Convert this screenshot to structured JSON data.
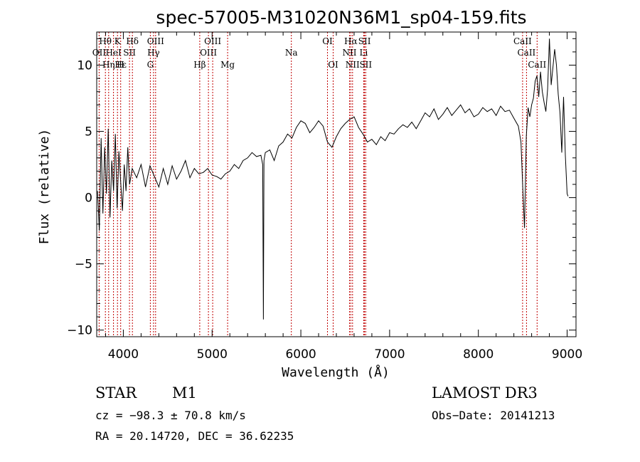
{
  "chart_data": {
    "type": "line",
    "title": "spec-57005-M31020N36M1_sp04-159.fits",
    "xlabel": "Wavelength (Å)",
    "ylabel": "Flux (relative)",
    "xlim": [
      3700,
      9100
    ],
    "ylim": [
      -10.5,
      12.5
    ],
    "xticks": [
      4000,
      5000,
      6000,
      7000,
      8000,
      9000
    ],
    "yticks": [
      -10,
      -5,
      0,
      5,
      10
    ],
    "xtick_labels": [
      "4000",
      "5000",
      "6000",
      "7000",
      "8000",
      "9000"
    ],
    "ytick_labels": [
      "−10",
      "−5",
      "0",
      "5",
      "10"
    ],
    "spectrum": {
      "name": "flux",
      "x": [
        3710,
        3730,
        3750,
        3770,
        3790,
        3810,
        3830,
        3850,
        3870,
        3890,
        3910,
        3930,
        3950,
        3970,
        3990,
        4010,
        4030,
        4050,
        4070,
        4100,
        4150,
        4200,
        4250,
        4300,
        4350,
        4400,
        4450,
        4500,
        4550,
        4600,
        4650,
        4700,
        4750,
        4800,
        4850,
        4900,
        4950,
        5000,
        5050,
        5100,
        5150,
        5200,
        5250,
        5300,
        5350,
        5400,
        5450,
        5500,
        5550,
        5570,
        5578,
        5584,
        5600,
        5650,
        5700,
        5750,
        5800,
        5850,
        5900,
        5950,
        6000,
        6050,
        6100,
        6150,
        6200,
        6250,
        6300,
        6350,
        6400,
        6450,
        6500,
        6550,
        6600,
        6650,
        6700,
        6750,
        6800,
        6850,
        6900,
        6950,
        7000,
        7050,
        7100,
        7150,
        7200,
        7250,
        7300,
        7350,
        7400,
        7450,
        7500,
        7550,
        7600,
        7650,
        7700,
        7750,
        7800,
        7850,
        7900,
        7950,
        8000,
        8050,
        8100,
        8150,
        8200,
        8250,
        8300,
        8350,
        8400,
        8450,
        8480,
        8500,
        8520,
        8540,
        8560,
        8580,
        8600,
        8620,
        8640,
        8660,
        8680,
        8700,
        8720,
        8740,
        8760,
        8780,
        8800,
        8820,
        8840,
        8860,
        8880,
        8900,
        8920,
        8940,
        8960,
        8980,
        9000,
        9010
      ],
      "y": [
        0.5,
        -2.5,
        4.5,
        -1.2,
        3.8,
        0.3,
        5.2,
        -1.5,
        2.8,
        0.5,
        4.8,
        -0.8,
        3.5,
        1.2,
        -1.0,
        2.5,
        0.5,
        3.8,
        1.0,
        2.2,
        1.5,
        2.5,
        0.8,
        2.4,
        1.6,
        0.8,
        2.2,
        1.0,
        2.4,
        1.4,
        2.0,
        2.8,
        1.5,
        2.2,
        1.8,
        1.9,
        2.2,
        1.7,
        1.6,
        1.4,
        1.8,
        2.0,
        2.5,
        2.2,
        2.8,
        3.0,
        3.4,
        3.1,
        3.2,
        2.5,
        -9.2,
        2.8,
        3.4,
        3.6,
        2.8,
        3.9,
        4.2,
        4.8,
        4.5,
        5.3,
        5.8,
        5.6,
        4.9,
        5.3,
        5.8,
        5.4,
        4.2,
        3.8,
        4.6,
        5.2,
        5.6,
        5.9,
        6.1,
        5.3,
        4.8,
        4.2,
        4.4,
        4.0,
        4.6,
        4.3,
        4.9,
        4.8,
        5.2,
        5.5,
        5.3,
        5.7,
        5.2,
        5.8,
        6.4,
        6.1,
        6.7,
        5.9,
        6.3,
        6.8,
        6.2,
        6.6,
        7.0,
        6.4,
        6.7,
        6.1,
        6.3,
        6.8,
        6.5,
        6.7,
        6.2,
        6.9,
        6.5,
        6.6,
        6.0,
        5.4,
        4.2,
        0.8,
        -2.3,
        4.6,
        6.8,
        6.1,
        7.0,
        7.5,
        8.8,
        9.2,
        7.6,
        9.5,
        8.0,
        7.2,
        6.5,
        8.2,
        12.0,
        8.5,
        9.8,
        11.2,
        10.0,
        7.8,
        6.4,
        3.4,
        7.6,
        3.2,
        0.3,
        0.1
      ]
    },
    "line_ids": [
      {
        "label": "Hθ",
        "x": 3798,
        "row": 1
      },
      {
        "label": "K",
        "x": 3934,
        "row": 1
      },
      {
        "label": "Hδ",
        "x": 4102,
        "row": 1
      },
      {
        "label": "OIII",
        "x": 4363,
        "row": 1
      },
      {
        "label": "OIII",
        "x": 5007,
        "row": 1
      },
      {
        "label": "OI",
        "x": 6300,
        "row": 1
      },
      {
        "label": "Hα",
        "x": 6563,
        "row": 1
      },
      {
        "label": "SII",
        "x": 6717,
        "row": 1
      },
      {
        "label": "CaII",
        "x": 8498,
        "row": 1
      },
      {
        "label": "OII",
        "x": 3727,
        "row": 2
      },
      {
        "label": "HeI",
        "x": 3889,
        "row": 2
      },
      {
        "label": "SII",
        "x": 4069,
        "row": 2
      },
      {
        "label": "Hγ",
        "x": 4340,
        "row": 2
      },
      {
        "label": "OIII",
        "x": 4959,
        "row": 2
      },
      {
        "label": "Na",
        "x": 5893,
        "row": 2
      },
      {
        "label": "NII",
        "x": 6548,
        "row": 2
      },
      {
        "label": "Li",
        "x": 6708,
        "row": 2
      },
      {
        "label": "CaII",
        "x": 8542,
        "row": 2
      },
      {
        "label": "Hε",
        "x": 3970,
        "row": 3
      },
      {
        "label": "Hη",
        "x": 3835,
        "row": 3
      },
      {
        "label": "H",
        "x": 3968,
        "row": 3
      },
      {
        "label": "G",
        "x": 4304,
        "row": 3
      },
      {
        "label": "Hβ",
        "x": 4861,
        "row": 3
      },
      {
        "label": "Mg",
        "x": 5175,
        "row": 3
      },
      {
        "label": "OI",
        "x": 6364,
        "row": 3
      },
      {
        "label": "NII",
        "x": 6583,
        "row": 3
      },
      {
        "label": "SII",
        "x": 6731,
        "row": 3
      },
      {
        "label": "CaII",
        "x": 8662,
        "row": 3
      }
    ],
    "marker_lines_x": [
      3727,
      3798,
      3835,
      3889,
      3934,
      3970,
      4069,
      4102,
      4304,
      4340,
      4363,
      4861,
      4959,
      5007,
      5175,
      5893,
      6300,
      6364,
      6548,
      6563,
      6583,
      6708,
      6717,
      6731,
      8498,
      8542,
      8662
    ],
    "colors": {
      "spectrum": "#000000",
      "marker": "#c00000",
      "axis": "#000000"
    }
  },
  "info": {
    "object_class": "STAR",
    "subclass": "M1",
    "survey": "LAMOST DR3",
    "cz": "cz = −98.3 ± 70.8 km/s",
    "obs_date": "Obs−Date: 20141213",
    "coords": "RA =  20.14720, DEC =  36.62235"
  }
}
